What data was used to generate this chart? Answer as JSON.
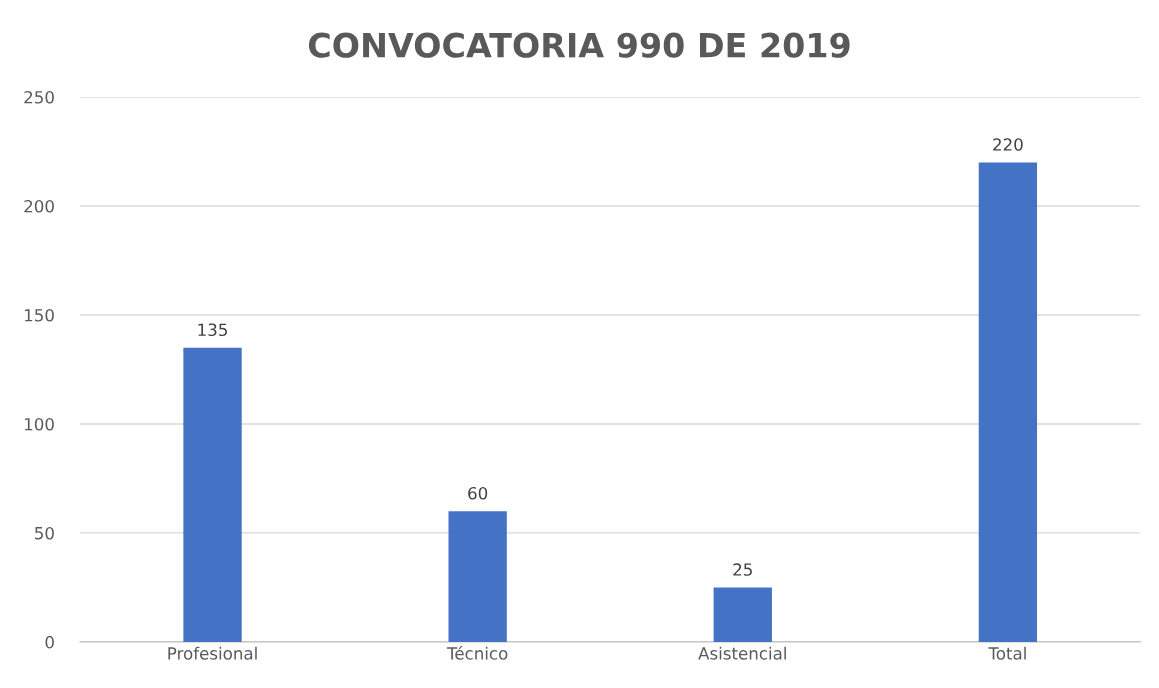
{
  "chart_data": {
    "type": "bar",
    "title": "CONVOCATORIA 990 DE 2019",
    "categories": [
      "Profesional",
      "Técnico",
      "Asistencial",
      "Total"
    ],
    "values": [
      135,
      60,
      25,
      220
    ],
    "color": "#4472c4",
    "ylim": [
      0,
      250
    ],
    "yticks": [
      0,
      50,
      100,
      150,
      200,
      250
    ],
    "grid": "y",
    "data_labels": true,
    "legend": false
  }
}
